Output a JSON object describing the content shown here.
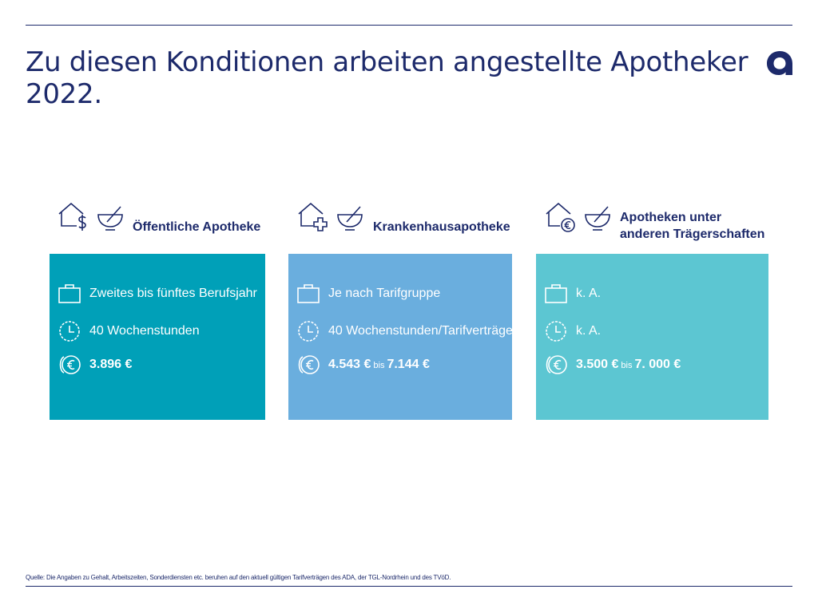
{
  "title": "Zu diesen Konditionen arbeiten angestellte Apotheker 2022.",
  "logo": {
    "icon": "a-logo-icon",
    "color": "#1d2a6b"
  },
  "columns": [
    {
      "header_lines": [
        "Öffentliche Apotheke"
      ],
      "icons": [
        "house-dollar-icon",
        "mortar-pestle-icon"
      ],
      "card_color": "#00a0b8",
      "experience": "Zweites bis fünftes Berufsjahr",
      "hours": "40 Wochenstunden",
      "salary_from": "3.896 €",
      "salary_sep": "",
      "salary_to": ""
    },
    {
      "header_lines": [
        "Krankenhausapotheke"
      ],
      "icons": [
        "house-cross-icon",
        "mortar-pestle-icon"
      ],
      "card_color": "#6aaede",
      "experience": "Je nach Tarifgruppe",
      "hours": "40 Wochenstunden/Tarifverträge",
      "salary_from": "4.543 €",
      "salary_sep": "bis",
      "salary_to": "7.144 €"
    },
    {
      "header_lines": [
        "Apotheken unter",
        "anderen Trägerschaften"
      ],
      "icons": [
        "house-euro-icon",
        "mortar-pestle-icon"
      ],
      "card_color": "#5cc6d2",
      "experience": "k. A.",
      "hours": "k. A.",
      "salary_from": "3.500 €",
      "salary_sep": "bis",
      "salary_to": "7. 000 €"
    }
  ],
  "row_icons": [
    "briefcase-icon",
    "clock-icon",
    "euro-coins-icon"
  ],
  "footnote": "Quelle: Die Angaben zu Gehalt, Arbeitszeiten, Sonderdiensten etc. beruhen auf den aktuell gültigen Tarifverträgen des ADA, der TGL-Nordrhein und des TVöD."
}
